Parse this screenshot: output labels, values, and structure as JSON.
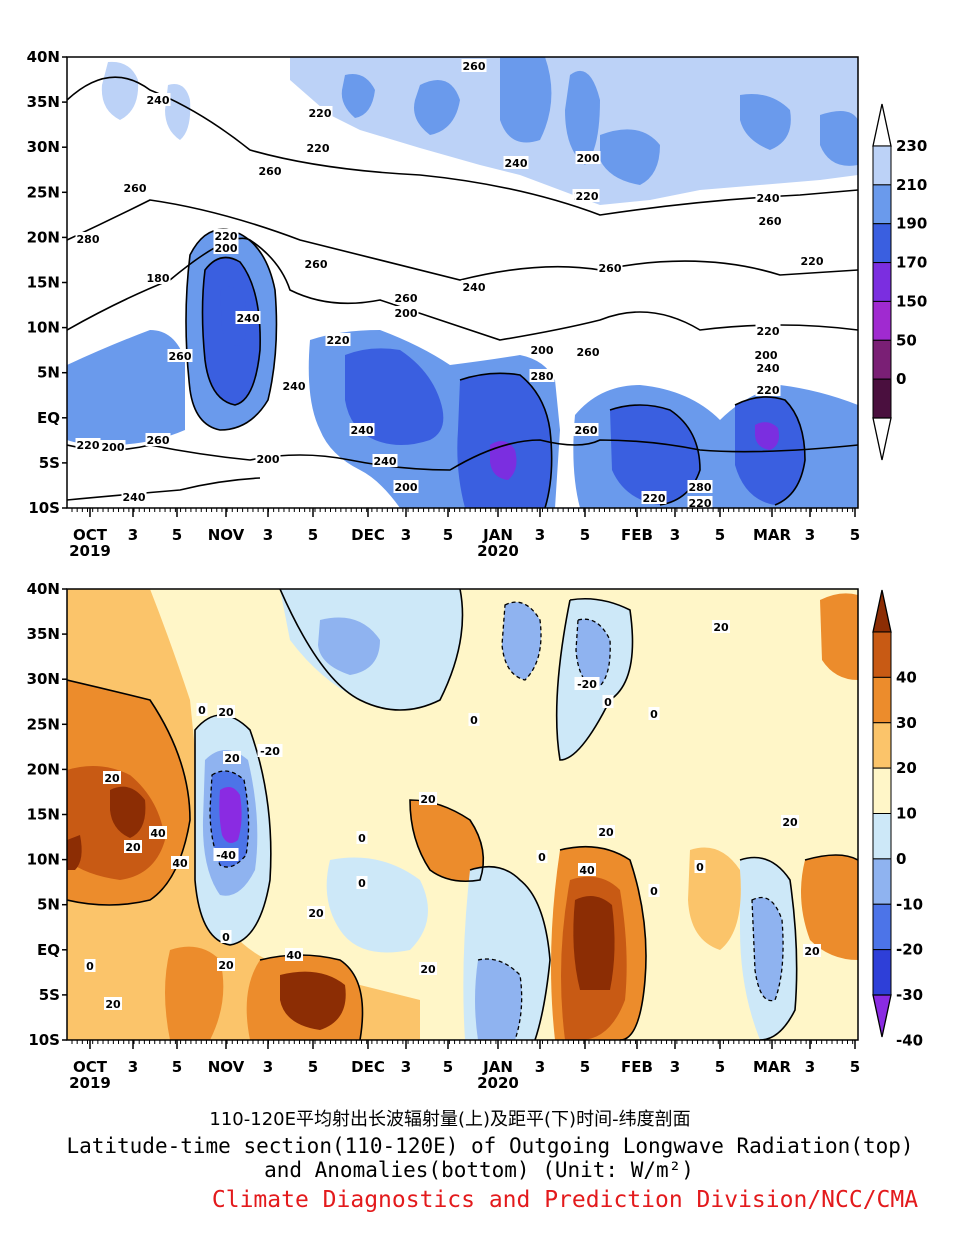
{
  "captions": {
    "chinese": "110-120E平均射出长波辐射量(上)及距平(下)时间-纬度剖面",
    "english_line1": "Latitude-time section(110-120E) of Outgoing Longwave Radiation(top)",
    "english_line2": "and Anomalies(bottom) (Unit: W/m²)",
    "credit": "Climate Diagnostics and Prediction Division/NCC/CMA"
  },
  "colors": {
    "credit": "#e31a1c",
    "olr_levels": [
      "#ffffff",
      "#bcd2f7",
      "#6a9aec",
      "#3a5fe0",
      "#7b2ee0",
      "#a02ad0",
      "#7a1f75",
      "#4a0f3e"
    ],
    "anom_levels": [
      "#8c2d04",
      "#c85a14",
      "#ec8c2c",
      "#fbc46a",
      "#fff6c8",
      "#cde8f8",
      "#8fb3f0",
      "#4c74e8",
      "#2e3fd8",
      "#8a2be2"
    ]
  },
  "chart_data": [
    {
      "type": "heatmap",
      "name": "top",
      "y_ticks": [
        "40N",
        "35N",
        "30N",
        "25N",
        "20N",
        "15N",
        "10N",
        "5N",
        "EQ",
        "5S",
        "10S"
      ],
      "y_range": [
        -10,
        40
      ],
      "x_range": [
        "2019-10-01",
        "2020-03-05"
      ],
      "x_ticks": [
        "OCT",
        "3",
        "5",
        "NOV",
        "3",
        "5",
        "DEC",
        "3",
        "5",
        "JAN",
        "3",
        "5",
        "FEB",
        "3",
        "5",
        "MAR",
        "3",
        "5"
      ],
      "x_year_labels": [
        "2019",
        "2020"
      ],
      "colorbar": {
        "labels": [
          "230",
          "210",
          "190",
          "170",
          "150",
          "50",
          "0"
        ],
        "extend": "both"
      },
      "contour_labels": [
        "220",
        "240",
        "220",
        "240",
        "260",
        "240",
        "200",
        "220",
        "260",
        "240",
        "280",
        "260",
        "220",
        "200",
        "260",
        "180",
        "240",
        "260",
        "260",
        "240",
        "220",
        "200",
        "220",
        "200",
        "280",
        "260",
        "260",
        "240",
        "220",
        "200",
        "240",
        "220",
        "260",
        "240",
        "200",
        "240",
        "260",
        "220",
        "200",
        "200",
        "220",
        "280",
        "220",
        "240",
        "260"
      ]
    },
    {
      "type": "heatmap",
      "name": "bottom",
      "y_ticks": [
        "40N",
        "35N",
        "30N",
        "25N",
        "20N",
        "15N",
        "10N",
        "5N",
        "EQ",
        "5S",
        "10S"
      ],
      "y_range": [
        -10,
        40
      ],
      "x_range": [
        "2019-10-01",
        "2020-03-05"
      ],
      "x_ticks": [
        "OCT",
        "3",
        "5",
        "NOV",
        "3",
        "5",
        "DEC",
        "3",
        "5",
        "JAN",
        "3",
        "5",
        "FEB",
        "3",
        "5",
        "MAR",
        "3",
        "5"
      ],
      "x_year_labels": [
        "2019",
        "2020"
      ],
      "colorbar": {
        "labels": [
          "40",
          "30",
          "20",
          "10",
          "0",
          "-10",
          "-20",
          "-30",
          "-40"
        ],
        "extend": "both"
      },
      "contour_labels": [
        "20",
        "0",
        "0",
        "20",
        "-20",
        "20",
        "20",
        "40",
        "20",
        "40",
        "20",
        "-40",
        "0",
        "20",
        "40",
        "20",
        "0",
        "0",
        "20",
        "-20",
        "0",
        "0",
        "20",
        "20",
        "40",
        "0",
        "0",
        "20",
        "0",
        "20",
        "0"
      ]
    }
  ]
}
